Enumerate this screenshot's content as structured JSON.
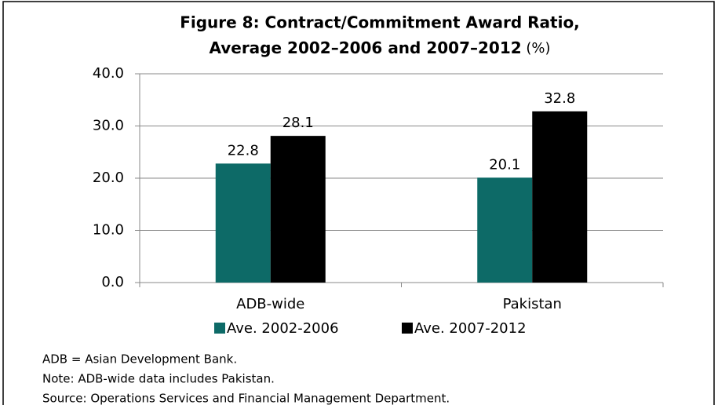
{
  "chart_data": {
    "type": "bar",
    "title": [
      "Figure 8: Contract/Commitment Award Ratio,",
      "Average 2002–2006 and 2007–2012"
    ],
    "title_unit": "(%)",
    "categories": [
      "ADB-wide",
      "Pakistan"
    ],
    "series": [
      {
        "name": "Ave. 2002-2006",
        "color": "#0d6a67",
        "values": [
          22.8,
          20.1
        ]
      },
      {
        "name": "Ave. 2007-2012",
        "color": "#000000",
        "values": [
          28.1,
          32.8
        ]
      }
    ],
    "ylim": [
      0,
      40
    ],
    "yticks": [
      {
        "value": 0,
        "label": "0.0"
      },
      {
        "value": 10,
        "label": "10.0"
      },
      {
        "value": 20,
        "label": "20.0"
      },
      {
        "value": 30,
        "label": "30.0"
      },
      {
        "value": 40,
        "label": "40.0"
      }
    ],
    "grid": true,
    "legend": "bottom",
    "notes": [
      "ADB = Asian Development Bank.",
      "Note: ADB-wide data includes Pakistan.",
      "Source: Operations Services and Financial Management Department."
    ]
  }
}
